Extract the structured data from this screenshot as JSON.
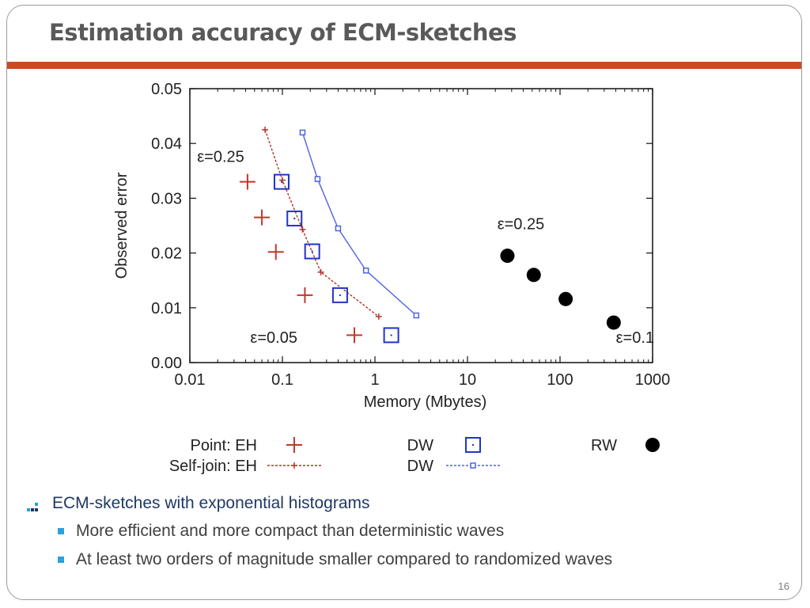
{
  "slide": {
    "title": "Estimation accuracy of ECM-sketches",
    "page_number": "16",
    "accent_color": "#cc4a1f"
  },
  "bullets": {
    "main": "ECM-sketches with exponential histograms",
    "sub": [
      "More efficient and more compact than deterministic waves",
      "At least two orders of magnitude smaller compared to randomized waves"
    ]
  },
  "chart_data": {
    "type": "scatter",
    "xlabel": "Memory (Mbytes)",
    "ylabel": "Observed error",
    "x_scale": "log",
    "xlim": [
      0.01,
      1000
    ],
    "ylim": [
      0,
      0.05
    ],
    "x_ticks": [
      "0.01",
      "0.1",
      "1",
      "10",
      "100",
      "1000"
    ],
    "y_ticks": [
      "0.00",
      "0.01",
      "0.02",
      "0.03",
      "0.04",
      "0.05"
    ],
    "grid": false,
    "legend_position": "bottom",
    "series": [
      {
        "name": "Point: EH",
        "marker": "plus",
        "line": false,
        "color": "#c0392b",
        "points": [
          [
            0.042,
            0.033
          ],
          [
            0.06,
            0.0265
          ],
          [
            0.085,
            0.0202
          ],
          [
            0.175,
            0.0123
          ],
          [
            0.6,
            0.005
          ]
        ]
      },
      {
        "name": "Self-join: EH",
        "marker": "small-plus",
        "line": true,
        "color": "#b5342a",
        "points": [
          [
            0.065,
            0.0425
          ],
          [
            0.1,
            0.0333
          ],
          [
            0.165,
            0.0243
          ],
          [
            0.26,
            0.0165
          ],
          [
            1.1,
            0.0084
          ]
        ]
      },
      {
        "name": "DW",
        "marker": "square-dot",
        "line": false,
        "color": "#2233cc",
        "points": [
          [
            0.098,
            0.033
          ],
          [
            0.135,
            0.0263
          ],
          [
            0.21,
            0.0203
          ],
          [
            0.42,
            0.0123
          ],
          [
            1.5,
            0.005
          ]
        ]
      },
      {
        "name": "DW",
        "marker": "small-square",
        "line": true,
        "color": "#4f63e0",
        "points": [
          [
            0.165,
            0.042
          ],
          [
            0.24,
            0.0335
          ],
          [
            0.4,
            0.0245
          ],
          [
            0.8,
            0.0168
          ],
          [
            2.8,
            0.0086
          ]
        ]
      },
      {
        "name": "RW",
        "marker": "circle",
        "line": false,
        "color": "#000000",
        "points": [
          [
            27,
            0.0195
          ],
          [
            52,
            0.016
          ],
          [
            115,
            0.0116
          ],
          [
            380,
            0.0073
          ]
        ]
      }
    ],
    "annotations": [
      "ε=0.25",
      "ε=0.05",
      "ε=0.25",
      "ε=0.1"
    ]
  }
}
